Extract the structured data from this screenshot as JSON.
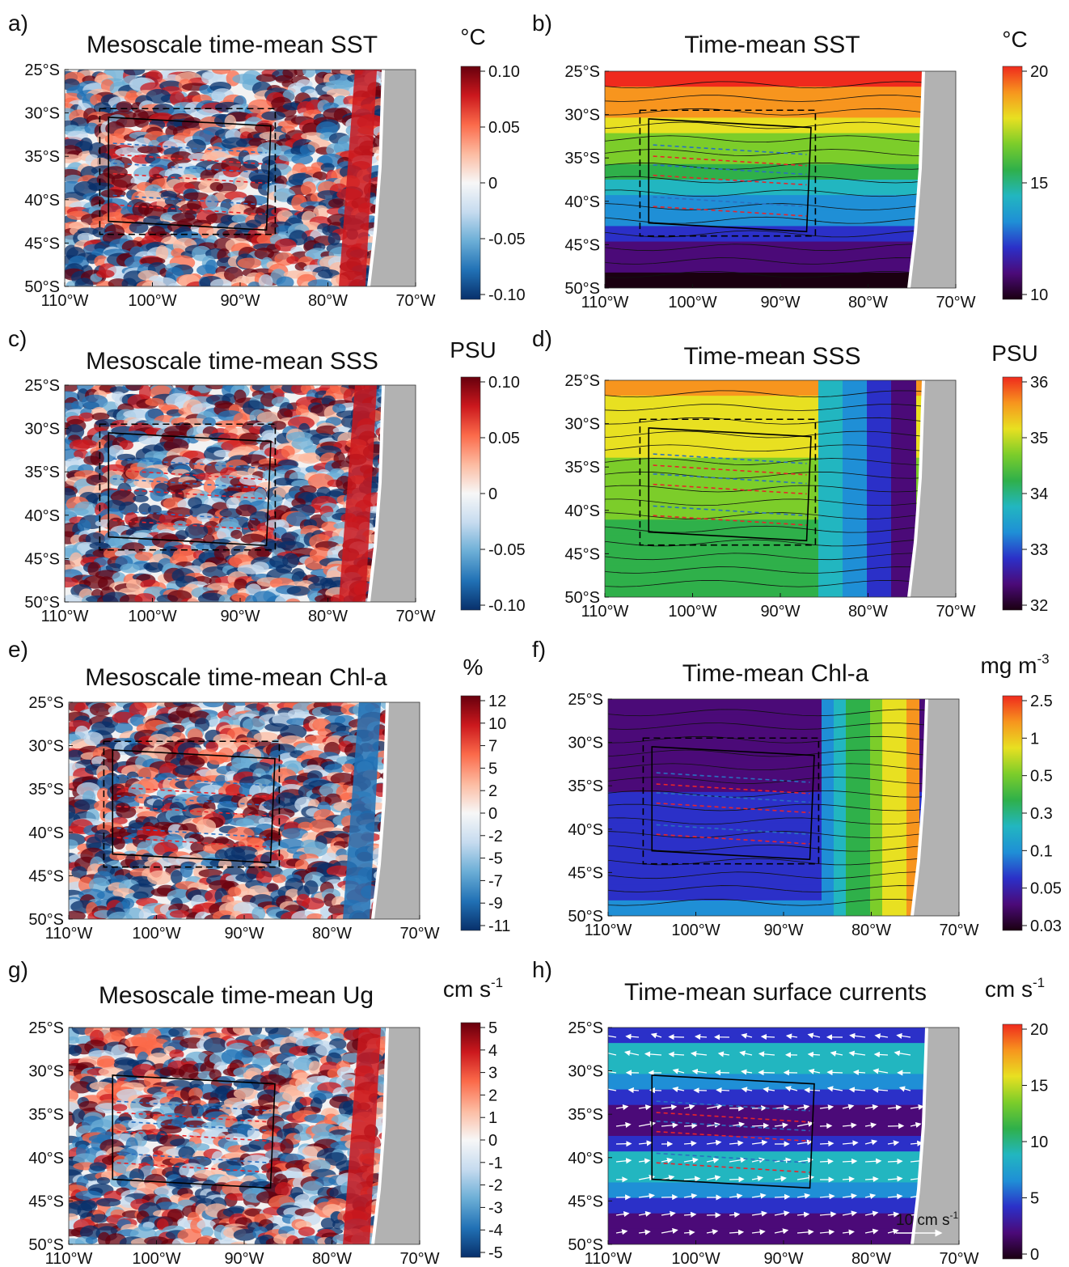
{
  "colormaps": {
    "diverging": [
      "#08306b",
      "#2171b5",
      "#6baed6",
      "#c6dbef",
      "#f7f7f7",
      "#fcbba1",
      "#fb6a4a",
      "#cb181d",
      "#67000d"
    ],
    "spectral": [
      "#1a0010",
      "#4b0a78",
      "#2b30c8",
      "#1f8fd6",
      "#22b6c0",
      "#2fb04a",
      "#7ccd2a",
      "#e8e021",
      "#f7951e",
      "#ef2a1d"
    ],
    "land": "#b2b2b2",
    "coast": "#ffffff",
    "box": "#000000",
    "line_red": "#e8242a",
    "line_blue": "#2a6fc0"
  },
  "chart_data": [
    {
      "panel": "a)",
      "type": "heatmap",
      "title": "Mesoscale time-mean SST",
      "unit": "°C",
      "cmap": "diverging",
      "xticks": [
        "110°W",
        "100°W",
        "90°W",
        "80°W",
        "70°W"
      ],
      "yticks": [
        "25°S",
        "30°S",
        "35°S",
        "40°S",
        "45°S",
        "50°S"
      ],
      "xlim": [
        -110,
        -70
      ],
      "ylim": [
        -50,
        -25
      ],
      "colorbar": {
        "ticks": [
          "0.10",
          "0.05",
          "0",
          "-0.05",
          "-0.10"
        ],
        "range": [
          -0.1,
          0.1
        ]
      },
      "contours": false,
      "arrows": false
    },
    {
      "panel": "b)",
      "type": "heatmap",
      "title": "Time-mean SST",
      "unit": "°C",
      "cmap": "spectral",
      "xticks": [
        "110°W",
        "100°W",
        "90°W",
        "80°W",
        "70°W"
      ],
      "yticks": [
        "25°S",
        "30°S",
        "35°S",
        "40°S",
        "45°S",
        "50°S"
      ],
      "xlim": [
        -110,
        -70
      ],
      "ylim": [
        -50,
        -25
      ],
      "colorbar": {
        "ticks": [
          "20",
          "15",
          "10"
        ],
        "range": [
          8,
          24
        ]
      },
      "contours": true,
      "arrows": false
    },
    {
      "panel": "c)",
      "type": "heatmap",
      "title": "Mesoscale time-mean SSS",
      "unit": "PSU",
      "cmap": "diverging",
      "xticks": [
        "110°W",
        "100°W",
        "90°W",
        "80°W",
        "70°W"
      ],
      "yticks": [
        "25°S",
        "30°S",
        "35°S",
        "40°S",
        "45°S",
        "50°S"
      ],
      "xlim": [
        -110,
        -70
      ],
      "ylim": [
        -50,
        -25
      ],
      "colorbar": {
        "ticks": [
          "0.10",
          "0.05",
          "0",
          "-0.05",
          "-0.10"
        ],
        "range": [
          -0.1,
          0.1
        ]
      },
      "contours": false,
      "arrows": false
    },
    {
      "panel": "d)",
      "type": "heatmap",
      "title": "Time-mean SSS",
      "unit": "PSU",
      "cmap": "spectral",
      "xticks": [
        "110°W",
        "100°W",
        "90°W",
        "80°W",
        "70°W"
      ],
      "yticks": [
        "25°S",
        "30°S",
        "35°S",
        "40°S",
        "45°S",
        "50°S"
      ],
      "xlim": [
        -110,
        -70
      ],
      "ylim": [
        -50,
        -25
      ],
      "colorbar": {
        "ticks": [
          "36",
          "35",
          "34",
          "33",
          "32"
        ],
        "range": [
          31.5,
          36.5
        ]
      },
      "contours": true,
      "arrows": false
    },
    {
      "panel": "e)",
      "type": "heatmap",
      "title": "Mesoscale time-mean Chl-a",
      "unit": "%",
      "cmap": "diverging",
      "xticks": [
        "110°W",
        "100°W",
        "90°W",
        "80°W",
        "70°W"
      ],
      "yticks": [
        "25°S",
        "30°S",
        "35°S",
        "40°S",
        "45°S",
        "50°S"
      ],
      "xlim": [
        -110,
        -70
      ],
      "ylim": [
        -50,
        -25
      ],
      "colorbar": {
        "ticks": [
          "12",
          "10",
          "7",
          "5",
          "2",
          "0",
          "-2",
          "-5",
          "-7",
          "-9",
          "-11"
        ],
        "range": [
          -12,
          12
        ]
      },
      "contours": false,
      "arrows": false
    },
    {
      "panel": "f)",
      "type": "heatmap",
      "title": "Time-mean Chl-a",
      "unit": "mg m",
      "unit_sup": "-3",
      "cmap": "spectral",
      "xticks": [
        "110°W",
        "100°W",
        "90°W",
        "80°W",
        "70°W"
      ],
      "yticks": [
        "25°S",
        "30°S",
        "35°S",
        "40°S",
        "45°S",
        "50°S"
      ],
      "xlim": [
        -110,
        -70
      ],
      "ylim": [
        -50,
        -25
      ],
      "colorbar": {
        "ticks": [
          "2.5",
          "1",
          "0.5",
          "0.3",
          "0.1",
          "0.05",
          "0.03"
        ],
        "range": [
          0.03,
          2.5
        ],
        "scale": "log"
      },
      "contours": true,
      "arrows": false
    },
    {
      "panel": "g)",
      "type": "heatmap",
      "title": "Mesoscale time-mean Ug",
      "unit": "cm s",
      "unit_sup": "-1",
      "cmap": "diverging",
      "xticks": [
        "110°W",
        "100°W",
        "90°W",
        "80°W",
        "70°W"
      ],
      "yticks": [
        "25°S",
        "30°S",
        "35°S",
        "40°S",
        "45°S",
        "50°S"
      ],
      "xlim": [
        -110,
        -70
      ],
      "ylim": [
        -50,
        -25
      ],
      "colorbar": {
        "ticks": [
          "5",
          "4",
          "3",
          "2",
          "1",
          "0",
          "-1",
          "-2",
          "-3",
          "-4",
          "-5"
        ],
        "range": [
          -5,
          5
        ]
      },
      "contours": false,
      "arrows": false
    },
    {
      "panel": "h)",
      "type": "heatmap",
      "title": "Time-mean surface currents",
      "unit": "cm s",
      "unit_sup": "-1",
      "cmap": "spectral",
      "xticks": [
        "110°W",
        "100°W",
        "90°W",
        "80°W",
        "70°W"
      ],
      "yticks": [
        "25°S",
        "30°S",
        "35°S",
        "40°S",
        "45°S",
        "50°S"
      ],
      "xlim": [
        -110,
        -70
      ],
      "ylim": [
        -50,
        -25
      ],
      "colorbar": {
        "ticks": [
          "20",
          "15",
          "10",
          "5",
          "0"
        ],
        "range": [
          0,
          20
        ]
      },
      "contours": false,
      "arrows": true,
      "reference_arrow": {
        "label": "10 cm s",
        "label_sup": "-1",
        "magnitude": 10
      }
    }
  ]
}
